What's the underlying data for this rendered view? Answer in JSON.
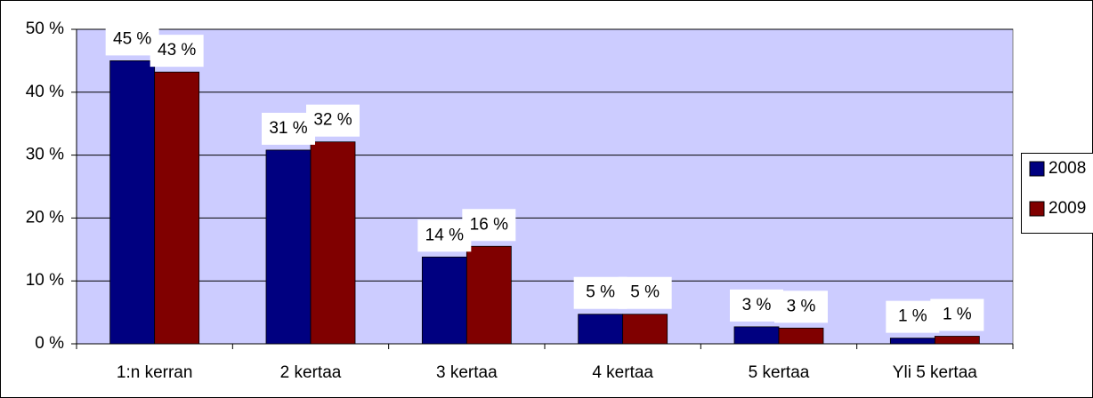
{
  "chart_data": {
    "type": "bar",
    "categories": [
      "1:n kerran",
      "2 kertaa",
      "3 kertaa",
      "4 kertaa",
      "5 kertaa",
      "Yli 5 kertaa"
    ],
    "series": [
      {
        "name": "2008",
        "color": "#000080",
        "values": [
          45,
          30.8,
          13.8,
          4.7,
          2.7,
          0.9
        ],
        "value_labels": [
          "45 %",
          "31 %",
          "14 %",
          "5 %",
          "3 %",
          "1 %"
        ]
      },
      {
        "name": "2009",
        "color": "#800000",
        "values": [
          43.2,
          32.1,
          15.5,
          4.7,
          2.5,
          1.2
        ],
        "value_labels": [
          "43 %",
          "32 %",
          "16 %",
          "5 %",
          "3 %",
          "1 %"
        ]
      }
    ],
    "ylim": [
      0,
      50
    ],
    "yticks": [
      {
        "value": 0,
        "label": "0 %"
      },
      {
        "value": 10,
        "label": "10 %"
      },
      {
        "value": 20,
        "label": "20 %"
      },
      {
        "value": 30,
        "label": "30 %"
      },
      {
        "value": 40,
        "label": "40 %"
      },
      {
        "value": 50,
        "label": "50 %"
      }
    ],
    "grid": true,
    "plot_background": "#ccccff",
    "legend": "right"
  }
}
